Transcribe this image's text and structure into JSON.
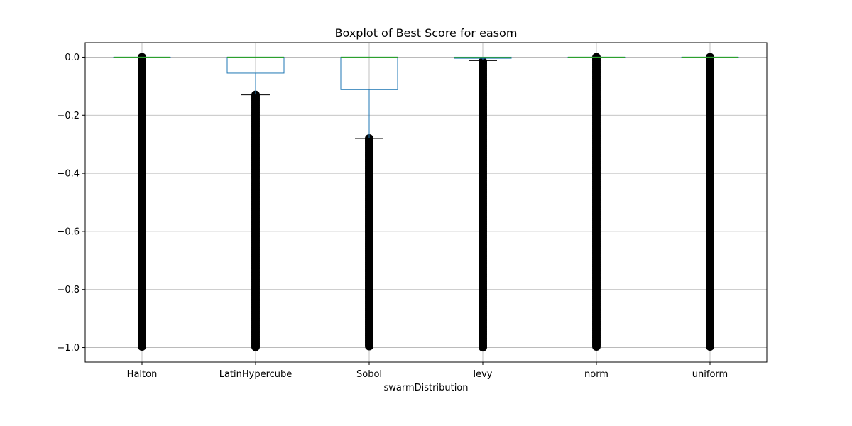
{
  "chart_data": {
    "type": "boxplot",
    "title": "Boxplot of Best Score for easom",
    "xlabel": "swarmDistribution",
    "ylabel": "",
    "ylim": [
      -1.05,
      0.05
    ],
    "yticks": [
      0.0,
      -0.2,
      -0.4,
      -0.6,
      -0.8,
      -1.0
    ],
    "ytick_labels": [
      "0.0",
      "−0.2",
      "−0.4",
      "−0.6",
      "−0.8",
      "−1.0"
    ],
    "grid": true,
    "categories": [
      "Halton",
      "LatinHypercube",
      "Sobol",
      "levy",
      "norm",
      "uniform"
    ],
    "boxes": [
      {
        "name": "Halton",
        "q1": -0.001,
        "median": 0.0,
        "q3": 0.0,
        "whisker_low": -0.002,
        "whisker_high": 0.0,
        "outliers_range": [
          -1.0,
          0.0
        ]
      },
      {
        "name": "LatinHypercube",
        "q1": -0.055,
        "median": 0.0,
        "q3": 0.0,
        "whisker_low": -0.13,
        "whisker_high": 0.0,
        "outliers_range": [
          -1.0,
          -0.13
        ]
      },
      {
        "name": "Sobol",
        "q1": -0.112,
        "median": 0.0,
        "q3": 0.0,
        "whisker_low": -0.28,
        "whisker_high": 0.0,
        "outliers_range": [
          -1.0,
          -0.28
        ]
      },
      {
        "name": "levy",
        "q1": -0.004,
        "median": -0.001,
        "q3": 0.0,
        "whisker_low": -0.012,
        "whisker_high": 0.0,
        "outliers_range": [
          -1.0,
          -0.015
        ]
      },
      {
        "name": "norm",
        "q1": -0.001,
        "median": 0.0,
        "q3": 0.0,
        "whisker_low": -0.002,
        "whisker_high": 0.0,
        "outliers_range": [
          -1.0,
          0.0
        ]
      },
      {
        "name": "uniform",
        "q1": 0.0,
        "median": 0.0,
        "q3": 0.0,
        "whisker_low": 0.0,
        "whisker_high": 0.0,
        "outliers_range": [
          -1.0,
          0.0
        ]
      }
    ],
    "colors": {
      "box": "#1f77b4",
      "median": "#2ca02c",
      "whisker_cap": "#000000",
      "outlier": "#000000",
      "grid": "#b0b0b0"
    }
  }
}
